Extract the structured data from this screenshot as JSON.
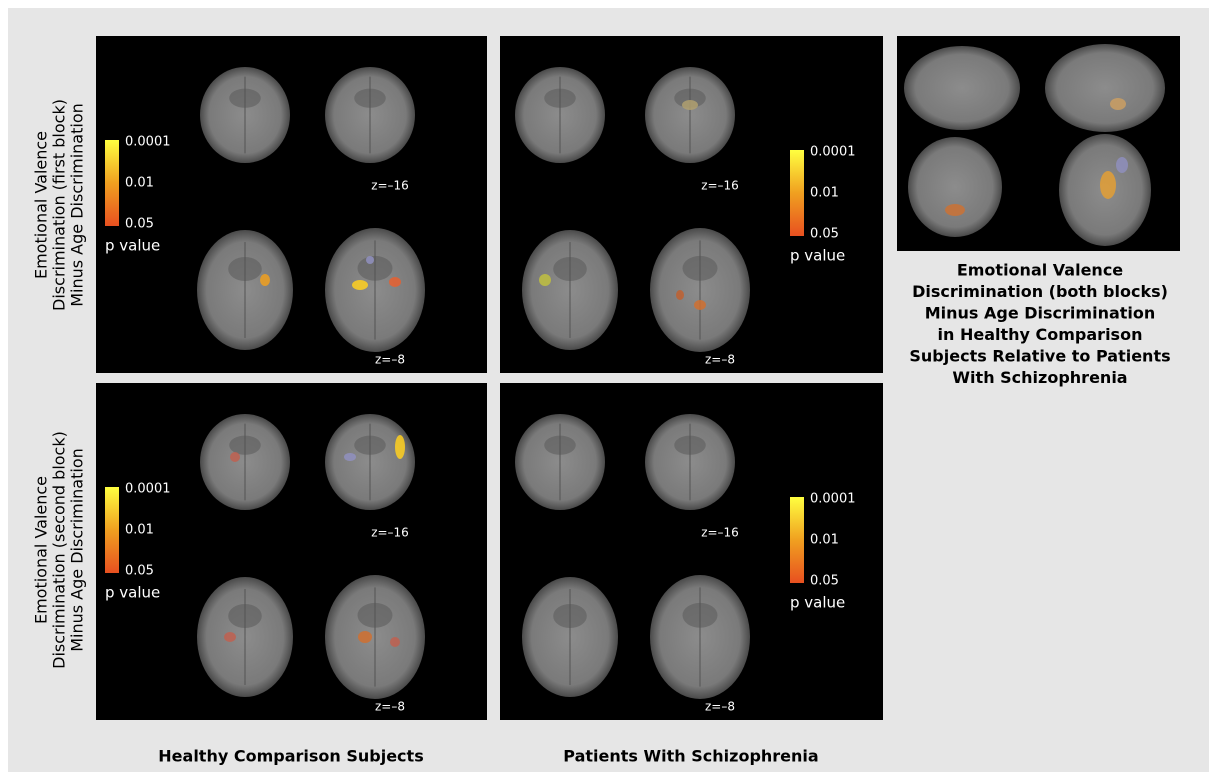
{
  "row_labels": [
    [
      "Emotional Valence",
      "Discrimination (first block)",
      "Minus Age Discrimination"
    ],
    [
      "Emotional Valence",
      "Discrimination (second block)",
      "Minus Age Discrimination"
    ]
  ],
  "column_labels": [
    "Healthy Comparison Subjects",
    "Patients With Schizophrenia"
  ],
  "panels": [
    {
      "colorbar": {
        "ticks": [
          "0.0001",
          "0.01",
          "0.05"
        ],
        "label": "p value"
      },
      "slice_labels": [
        "z=–16",
        "z=–8"
      ]
    },
    {
      "colorbar": {
        "ticks": [
          "0.0001",
          "0.01",
          "0.05"
        ],
        "label": "p value"
      },
      "slice_labels": [
        "z=–16",
        "z=–8"
      ]
    },
    {
      "colorbar": {
        "ticks": [
          "0.0001",
          "0.01",
          "0.05"
        ],
        "label": "p value"
      },
      "slice_labels": [
        "z=–16",
        "z=–8"
      ]
    },
    {
      "colorbar": {
        "ticks": [
          "0.0001",
          "0.01",
          "0.05"
        ],
        "label": "p value"
      },
      "slice_labels": [
        "z=–16",
        "z=–8"
      ]
    }
  ],
  "side_panel": {
    "caption": [
      "Emotional Valence",
      "Discrimination (both blocks)",
      "Minus Age Discrimination",
      "in Healthy Comparison",
      "Subjects Relative to Patients",
      "With Schizophrenia"
    ]
  }
}
